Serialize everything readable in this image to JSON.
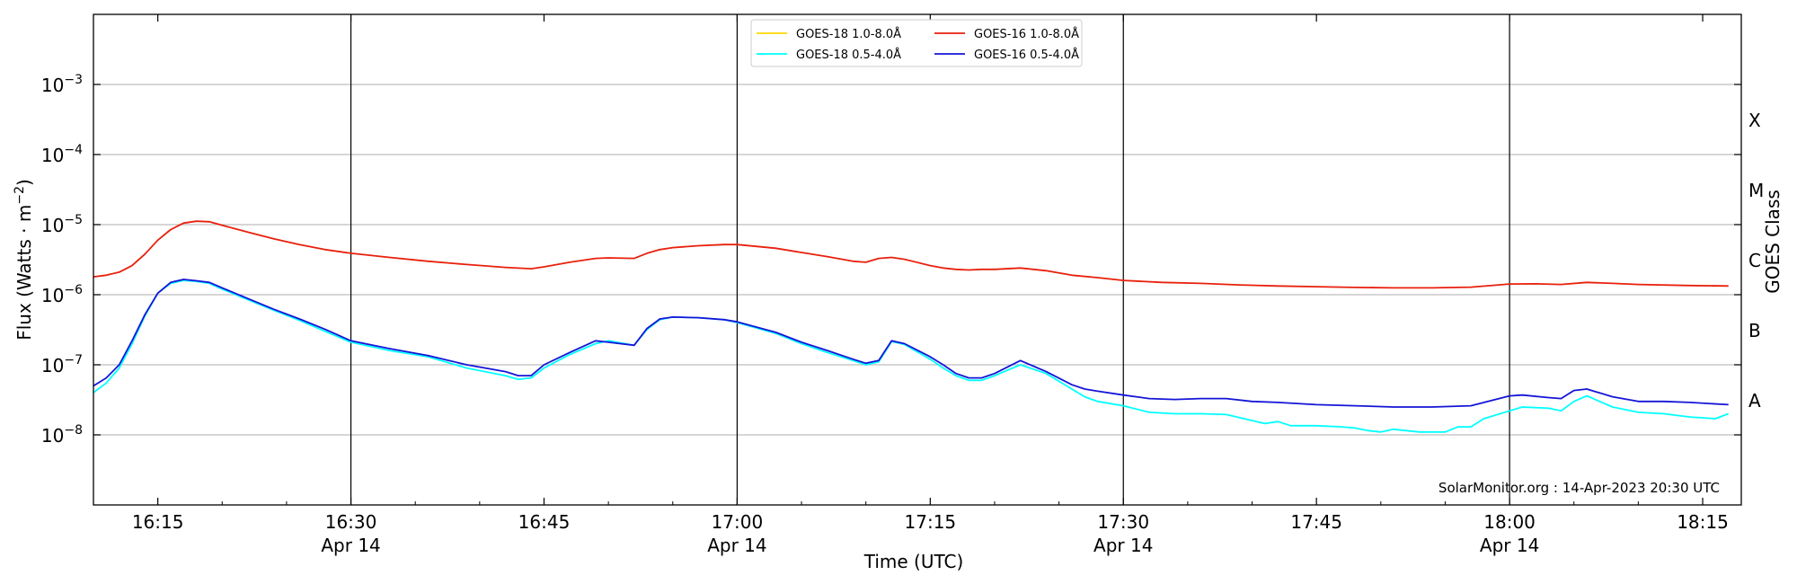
{
  "chart_data": {
    "type": "line",
    "xlabel": "Time (UTC)",
    "ylabel_main": "Flux (Watts · m",
    "ylabel_exp": "−2",
    "ylabel_close": ")",
    "ylabel_right": "GOES Class",
    "y_scale": "log",
    "xlim": [
      "16:10",
      "18:18"
    ],
    "ylim": [
      1e-09,
      0.01
    ],
    "grid": "horizontal at decades",
    "legend_position": "top-center",
    "x_major_ticks": [
      {
        "time": "16:15",
        "label": "16:15",
        "sublabel": "",
        "vline": false
      },
      {
        "time": "16:30",
        "label": "16:30",
        "sublabel": "Apr 14",
        "vline": true
      },
      {
        "time": "16:45",
        "label": "16:45",
        "sublabel": "",
        "vline": false
      },
      {
        "time": "17:00",
        "label": "17:00",
        "sublabel": "Apr 14",
        "vline": true
      },
      {
        "time": "17:15",
        "label": "17:15",
        "sublabel": "",
        "vline": false
      },
      {
        "time": "17:30",
        "label": "17:30",
        "sublabel": "Apr 14",
        "vline": true
      },
      {
        "time": "17:45",
        "label": "17:45",
        "sublabel": "",
        "vline": false
      },
      {
        "time": "18:00",
        "label": "18:00",
        "sublabel": "Apr 14",
        "vline": true
      },
      {
        "time": "18:15",
        "label": "18:15",
        "sublabel": "",
        "vline": false
      }
    ],
    "y_ticks": [
      {
        "exp": -3,
        "base": "10",
        "sup": "−3"
      },
      {
        "exp": -4,
        "base": "10",
        "sup": "−4"
      },
      {
        "exp": -5,
        "base": "10",
        "sup": "−5"
      },
      {
        "exp": -6,
        "base": "10",
        "sup": "−6"
      },
      {
        "exp": -7,
        "base": "10",
        "sup": "−7"
      },
      {
        "exp": -8,
        "base": "10",
        "sup": "−8"
      }
    ],
    "goes_classes": [
      {
        "label": "X",
        "exp": -3.5
      },
      {
        "label": "M",
        "exp": -4.5
      },
      {
        "label": "C",
        "exp": -5.5
      },
      {
        "label": "B",
        "exp": -6.5
      },
      {
        "label": "A",
        "exp": -7.5
      }
    ],
    "watermark": "SolarMonitor.org : 14-Apr-2023 20:30 UTC",
    "series": [
      {
        "name": "GOES-18 1.0-8.0Å",
        "color": "#ffd700",
        "x": [],
        "y": []
      },
      {
        "name": "GOES-18 0.5-4.0Å",
        "color": "#00ffff",
        "x": [
          "16:10",
          "16:11",
          "16:12",
          "16:13",
          "16:14",
          "16:15",
          "16:16",
          "16:17",
          "16:18",
          "16:19",
          "16:20",
          "16:22",
          "16:24",
          "16:26",
          "16:28",
          "16:30",
          "16:33",
          "16:36",
          "16:39",
          "16:42",
          "16:43",
          "16:44",
          "16:45",
          "16:47",
          "16:49",
          "16:50",
          "16:52",
          "16:53",
          "16:54",
          "16:55",
          "16:57",
          "16:59",
          "17:00",
          "17:03",
          "17:05",
          "17:07",
          "17:09",
          "17:10",
          "17:11",
          "17:12",
          "17:13",
          "17:15",
          "17:16",
          "17:17",
          "17:18",
          "17:19",
          "17:20",
          "17:22",
          "17:24",
          "17:26",
          "17:27",
          "17:28",
          "17:30",
          "17:32",
          "17:34",
          "17:36",
          "17:38",
          "17:40",
          "17:41",
          "17:42",
          "17:43",
          "17:45",
          "17:47",
          "17:48",
          "17:49",
          "17:50",
          "17:51",
          "17:53",
          "17:55",
          "17:56",
          "17:57",
          "17:58",
          "18:00",
          "18:01",
          "18:03",
          "18:04",
          "18:05",
          "18:06",
          "18:07",
          "18:08",
          "18:10",
          "18:12",
          "18:14",
          "18:16",
          "18:17"
        ],
        "y": [
          4e-08,
          5.5e-08,
          9e-08,
          2e-07,
          5e-07,
          1.05e-06,
          1.45e-06,
          1.6e-06,
          1.55e-06,
          1.45e-06,
          1.2e-06,
          8.5e-07,
          6e-07,
          4.3e-07,
          3e-07,
          2.1e-07,
          1.6e-07,
          1.3e-07,
          9e-08,
          7e-08,
          6.2e-08,
          6.5e-08,
          9e-08,
          1.4e-07,
          2e-07,
          2.2e-07,
          1.9e-07,
          3.2e-07,
          4.4e-07,
          4.8e-07,
          4.7e-07,
          4.4e-07,
          4e-07,
          2.8e-07,
          2e-07,
          1.5e-07,
          1.15e-07,
          1e-07,
          1.1e-07,
          2.15e-07,
          1.95e-07,
          1.2e-07,
          9e-08,
          7e-08,
          6e-08,
          6e-08,
          7e-08,
          1e-07,
          7.5e-08,
          4.5e-08,
          3.5e-08,
          3e-08,
          2.6e-08,
          2.1e-08,
          2e-08,
          2e-08,
          1.95e-08,
          1.6e-08,
          1.45e-08,
          1.55e-08,
          1.35e-08,
          1.35e-08,
          1.3e-08,
          1.25e-08,
          1.15e-08,
          1.1e-08,
          1.2e-08,
          1.1e-08,
          1.1e-08,
          1.3e-08,
          1.3e-08,
          1.7e-08,
          2.2e-08,
          2.5e-08,
          2.4e-08,
          2.2e-08,
          3e-08,
          3.6e-08,
          3e-08,
          2.5e-08,
          2.1e-08,
          2e-08,
          1.8e-08,
          1.7e-08,
          2e-08
        ]
      },
      {
        "name": "GOES-16 1.0-8.0Å",
        "color": "#e8200c",
        "x": [
          "16:10",
          "16:11",
          "16:12",
          "16:13",
          "16:14",
          "16:15",
          "16:16",
          "16:17",
          "16:18",
          "16:19",
          "16:20",
          "16:22",
          "16:24",
          "16:26",
          "16:28",
          "16:30",
          "16:33",
          "16:36",
          "16:39",
          "16:42",
          "16:44",
          "16:45",
          "16:47",
          "16:49",
          "16:50",
          "16:52",
          "16:53",
          "16:54",
          "16:55",
          "16:57",
          "16:59",
          "17:00",
          "17:03",
          "17:05",
          "17:07",
          "17:09",
          "17:10",
          "17:11",
          "17:12",
          "17:13",
          "17:15",
          "17:16",
          "17:17",
          "17:18",
          "17:19",
          "17:20",
          "17:22",
          "17:24",
          "17:26",
          "17:28",
          "17:30",
          "17:33",
          "17:36",
          "17:39",
          "17:42",
          "17:45",
          "17:48",
          "17:51",
          "17:54",
          "17:57",
          "18:00",
          "18:02",
          "18:04",
          "18:06",
          "18:08",
          "18:10",
          "18:14",
          "18:17"
        ],
        "y": [
          1.8e-06,
          1.9e-06,
          2.1e-06,
          2.6e-06,
          3.8e-06,
          6e-06,
          8.5e-06,
          1.05e-05,
          1.12e-05,
          1.1e-05,
          9.8e-06,
          7.8e-06,
          6.3e-06,
          5.2e-06,
          4.4e-06,
          3.9e-06,
          3.4e-06,
          3e-06,
          2.7e-06,
          2.45e-06,
          2.35e-06,
          2.5e-06,
          2.9e-06,
          3.3e-06,
          3.35e-06,
          3.3e-06,
          3.9e-06,
          4.4e-06,
          4.7e-06,
          5e-06,
          5.2e-06,
          5.2e-06,
          4.6e-06,
          4e-06,
          3.5e-06,
          3e-06,
          2.9e-06,
          3.3e-06,
          3.4e-06,
          3.2e-06,
          2.6e-06,
          2.4e-06,
          2.3e-06,
          2.25e-06,
          2.3e-06,
          2.3e-06,
          2.4e-06,
          2.2e-06,
          1.9e-06,
          1.75e-06,
          1.6e-06,
          1.5e-06,
          1.45e-06,
          1.38e-06,
          1.33e-06,
          1.3e-06,
          1.27e-06,
          1.25e-06,
          1.25e-06,
          1.28e-06,
          1.42e-06,
          1.43e-06,
          1.4e-06,
          1.5e-06,
          1.45e-06,
          1.4e-06,
          1.35e-06,
          1.33e-06
        ]
      },
      {
        "name": "GOES-16 0.5-4.0Å",
        "color": "#1515d8",
        "x": [
          "16:10",
          "16:11",
          "16:12",
          "16:13",
          "16:14",
          "16:15",
          "16:16",
          "16:17",
          "16:18",
          "16:19",
          "16:20",
          "16:22",
          "16:24",
          "16:26",
          "16:28",
          "16:30",
          "16:33",
          "16:36",
          "16:39",
          "16:42",
          "16:43",
          "16:44",
          "16:45",
          "16:47",
          "16:49",
          "16:50",
          "16:52",
          "16:53",
          "16:54",
          "16:55",
          "16:57",
          "16:59",
          "17:00",
          "17:03",
          "17:05",
          "17:07",
          "17:09",
          "17:10",
          "17:11",
          "17:12",
          "17:13",
          "17:15",
          "17:16",
          "17:17",
          "17:18",
          "17:19",
          "17:20",
          "17:22",
          "17:24",
          "17:26",
          "17:27",
          "17:28",
          "17:30",
          "17:32",
          "17:34",
          "17:36",
          "17:38",
          "17:40",
          "17:42",
          "17:45",
          "17:48",
          "17:51",
          "17:54",
          "17:57",
          "18:00",
          "18:01",
          "18:03",
          "18:04",
          "18:05",
          "18:06",
          "18:08",
          "18:10",
          "18:12",
          "18:14",
          "18:17"
        ],
        "y": [
          5e-08,
          6.5e-08,
          1e-07,
          2.2e-07,
          5.2e-07,
          1.05e-06,
          1.5e-06,
          1.65e-06,
          1.58e-06,
          1.5e-06,
          1.25e-06,
          8.8e-07,
          6.2e-07,
          4.5e-07,
          3.2e-07,
          2.2e-07,
          1.7e-07,
          1.35e-07,
          1e-07,
          8e-08,
          7e-08,
          7e-08,
          1e-07,
          1.5e-07,
          2.2e-07,
          2.1e-07,
          1.9e-07,
          3.3e-07,
          4.5e-07,
          4.8e-07,
          4.7e-07,
          4.4e-07,
          4.1e-07,
          2.9e-07,
          2.1e-07,
          1.6e-07,
          1.2e-07,
          1.05e-07,
          1.15e-07,
          2.2e-07,
          2e-07,
          1.3e-07,
          1e-07,
          7.5e-08,
          6.5e-08,
          6.5e-08,
          7.5e-08,
          1.15e-07,
          8e-08,
          5.2e-08,
          4.5e-08,
          4.2e-08,
          3.7e-08,
          3.3e-08,
          3.2e-08,
          3.3e-08,
          3.3e-08,
          3e-08,
          2.9e-08,
          2.7e-08,
          2.6e-08,
          2.5e-08,
          2.5e-08,
          2.6e-08,
          3.6e-08,
          3.7e-08,
          3.4e-08,
          3.3e-08,
          4.3e-08,
          4.5e-08,
          3.5e-08,
          3e-08,
          3e-08,
          2.9e-08,
          2.7e-08
        ]
      }
    ]
  }
}
